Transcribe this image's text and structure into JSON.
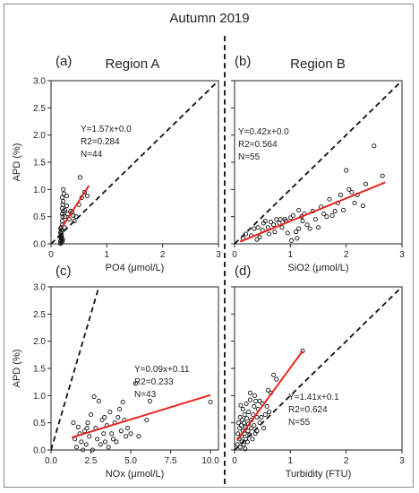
{
  "figure": {
    "title": "Autumn 2019"
  },
  "chart_data": [
    {
      "id": "a",
      "type": "scatter",
      "panel_label": "(a)",
      "region_label": "Region A",
      "xlabel": "PO4 (μmol/L)",
      "ylabel": "APD (%)",
      "xlim": [
        0,
        3
      ],
      "ylim": [
        0,
        3
      ],
      "xticks": [
        0,
        1,
        2,
        3
      ],
      "xtick_labels": [
        "0",
        "1",
        "2",
        "3"
      ],
      "yticks": [
        0,
        0.5,
        1,
        1.5,
        2,
        2.5,
        3
      ],
      "ytick_labels": [
        "0.0",
        "0.5",
        "1.0",
        "1.5",
        "2.0",
        "2.5",
        "3.0"
      ],
      "one_to_one": {
        "x": [
          0,
          3
        ],
        "y": [
          0,
          3
        ]
      },
      "fit": {
        "x": [
          0.2,
          0.68
        ],
        "y": [
          0.31,
          1.07
        ]
      },
      "annotation": {
        "eq": "Y=1.57x+0.0",
        "r2": "R2=0.284",
        "n": "N=44"
      },
      "points": [
        [
          0.17,
          0.0
        ],
        [
          0.18,
          0.02
        ],
        [
          0.17,
          0.05
        ],
        [
          0.19,
          0.07
        ],
        [
          0.18,
          0.1
        ],
        [
          0.17,
          0.13
        ],
        [
          0.18,
          0.15
        ],
        [
          0.19,
          0.18
        ],
        [
          0.17,
          0.2
        ],
        [
          0.18,
          0.22
        ],
        [
          0.19,
          0.25
        ],
        [
          0.17,
          0.28
        ],
        [
          0.18,
          0.3
        ],
        [
          0.19,
          0.12
        ],
        [
          0.2,
          0.04
        ],
        [
          0.21,
          0.08
        ],
        [
          0.2,
          0.35
        ],
        [
          0.2,
          0.42
        ],
        [
          0.21,
          0.5
        ],
        [
          0.2,
          0.55
        ],
        [
          0.22,
          0.6
        ],
        [
          0.2,
          0.65
        ],
        [
          0.21,
          0.72
        ],
        [
          0.22,
          0.78
        ],
        [
          0.2,
          0.85
        ],
        [
          0.23,
          0.92
        ],
        [
          0.22,
          1.0
        ],
        [
          0.25,
          0.5
        ],
        [
          0.25,
          0.62
        ],
        [
          0.28,
          0.7
        ],
        [
          0.28,
          0.88
        ],
        [
          0.3,
          0.55
        ],
        [
          0.33,
          0.45
        ],
        [
          0.35,
          0.6
        ],
        [
          0.38,
          0.58
        ],
        [
          0.4,
          0.52
        ],
        [
          0.42,
          0.42
        ],
        [
          0.45,
          0.5
        ],
        [
          0.5,
          0.72
        ],
        [
          0.52,
          1.22
        ],
        [
          0.55,
          0.85
        ],
        [
          0.6,
          0.95
        ],
        [
          0.65,
          0.88
        ],
        [
          0.24,
          0.3
        ]
      ]
    },
    {
      "id": "b",
      "type": "scatter",
      "panel_label": "(b)",
      "region_label": "Region B",
      "xlabel": "SiO2 (μmol/L)",
      "ylabel": "",
      "xlim": [
        0,
        3
      ],
      "ylim": [
        0,
        3
      ],
      "xticks": [
        0,
        1,
        2,
        3
      ],
      "xtick_labels": [
        "0",
        "1",
        "2",
        "3"
      ],
      "yticks": [
        0,
        0.5,
        1,
        1.5,
        2,
        2.5,
        3
      ],
      "ytick_labels": [
        "",
        "",
        "",
        "",
        "",
        "",
        ""
      ],
      "one_to_one": {
        "x": [
          0,
          3
        ],
        "y": [
          0,
          3
        ]
      },
      "fit": {
        "x": [
          0.1,
          2.7
        ],
        "y": [
          0.04,
          1.13
        ]
      },
      "annotation": {
        "eq": "Y=0.42x+0.0",
        "r2": "R2=0.564",
        "n": "N=55"
      },
      "points": [
        [
          0.15,
          0.1
        ],
        [
          0.2,
          0.18
        ],
        [
          0.3,
          0.15
        ],
        [
          0.35,
          0.28
        ],
        [
          0.4,
          0.08
        ],
        [
          0.42,
          0.3
        ],
        [
          0.45,
          0.12
        ],
        [
          0.5,
          0.25
        ],
        [
          0.52,
          0.38
        ],
        [
          0.55,
          0.42
        ],
        [
          0.6,
          0.3
        ],
        [
          0.62,
          0.18
        ],
        [
          0.65,
          0.4
        ],
        [
          0.7,
          0.35
        ],
        [
          0.72,
          0.22
        ],
        [
          0.75,
          0.45
        ],
        [
          0.8,
          0.38
        ],
        [
          0.82,
          0.45
        ],
        [
          0.85,
          0.3
        ],
        [
          0.9,
          0.45
        ],
        [
          0.92,
          0.42
        ],
        [
          0.95,
          0.2
        ],
        [
          1.0,
          0.48
        ],
        [
          1.02,
          0.06
        ],
        [
          1.05,
          0.52
        ],
        [
          1.1,
          0.22
        ],
        [
          1.12,
          0.1
        ],
        [
          1.15,
          0.28
        ],
        [
          1.2,
          0.5
        ],
        [
          1.22,
          0.42
        ],
        [
          1.25,
          0.55
        ],
        [
          1.3,
          0.35
        ],
        [
          1.35,
          0.28
        ],
        [
          1.4,
          0.6
        ],
        [
          1.45,
          0.45
        ],
        [
          1.5,
          0.3
        ],
        [
          1.55,
          0.68
        ],
        [
          1.6,
          0.55
        ],
        [
          1.65,
          0.5
        ],
        [
          1.7,
          0.82
        ],
        [
          1.75,
          0.52
        ],
        [
          1.8,
          0.6
        ],
        [
          1.85,
          0.75
        ],
        [
          1.9,
          0.9
        ],
        [
          1.95,
          0.62
        ],
        [
          2.0,
          1.35
        ],
        [
          2.05,
          1.0
        ],
        [
          2.1,
          0.95
        ],
        [
          2.15,
          0.75
        ],
        [
          2.2,
          0.9
        ],
        [
          2.3,
          0.7
        ],
        [
          2.35,
          1.1
        ],
        [
          2.5,
          1.8
        ],
        [
          2.65,
          1.25
        ],
        [
          1.15,
          0.62
        ]
      ]
    },
    {
      "id": "c",
      "type": "scatter",
      "panel_label": "(c)",
      "region_label": "",
      "xlabel": "NOx (μmol/L)",
      "ylabel": "APD (%)",
      "xlim": [
        0,
        10.5
      ],
      "ylim": [
        0,
        3
      ],
      "xticks": [
        0,
        2.5,
        5,
        7.5,
        10
      ],
      "xtick_labels": [
        "0.0",
        "2.5",
        "5.0",
        "7.5",
        "10.0"
      ],
      "yticks": [
        0,
        0.5,
        1,
        1.5,
        2,
        2.5,
        3
      ],
      "ytick_labels": [
        "0.0",
        "0.5",
        "1.0",
        "1.5",
        "2.0",
        "2.5",
        "3.0"
      ],
      "one_to_one": {
        "x": [
          0,
          3
        ],
        "y": [
          0,
          3
        ]
      },
      "fit": {
        "x": [
          1.3,
          10.0
        ],
        "y": [
          0.23,
          1.01
        ]
      },
      "annotation": {
        "eq": "Y=0.09x+0.11",
        "r2": "R2=0.233",
        "n": "N=43"
      },
      "points": [
        [
          1.4,
          0.5
        ],
        [
          1.5,
          0.2
        ],
        [
          1.6,
          0.05
        ],
        [
          1.8,
          0.3
        ],
        [
          1.9,
          0.15
        ],
        [
          2.0,
          0.0
        ],
        [
          2.1,
          0.35
        ],
        [
          2.2,
          0.1
        ],
        [
          2.3,
          0.5
        ],
        [
          2.4,
          0.25
        ],
        [
          2.5,
          0.65
        ],
        [
          2.6,
          0.0
        ],
        [
          2.7,
          0.98
        ],
        [
          2.8,
          0.4
        ],
        [
          2.9,
          0.2
        ],
        [
          3.0,
          0.9
        ],
        [
          3.1,
          0.1
        ],
        [
          3.2,
          0.55
        ],
        [
          3.3,
          0.3
        ],
        [
          3.4,
          0.15
        ],
        [
          3.5,
          0.45
        ],
        [
          3.6,
          0.05
        ],
        [
          3.7,
          0.7
        ],
        [
          3.8,
          0.3
        ],
        [
          3.9,
          0.2
        ],
        [
          4.0,
          0.5
        ],
        [
          4.1,
          0.15
        ],
        [
          4.2,
          0.6
        ],
        [
          4.3,
          0.75
        ],
        [
          4.4,
          0.35
        ],
        [
          4.5,
          0.88
        ],
        [
          4.6,
          0.55
        ],
        [
          4.7,
          0.25
        ],
        [
          4.8,
          0.4
        ],
        [
          5.0,
          0.3
        ],
        [
          5.3,
          1.22
        ],
        [
          5.5,
          0.25
        ],
        [
          6.0,
          0.55
        ],
        [
          6.2,
          0.9
        ],
        [
          2.25,
          0.4
        ],
        [
          3.35,
          0.6
        ],
        [
          1.7,
          0.42
        ],
        [
          10.0,
          0.88
        ]
      ]
    },
    {
      "id": "d",
      "type": "scatter",
      "panel_label": "(d)",
      "region_label": "",
      "xlabel": "Turbidity (FTU)",
      "ylabel": "",
      "xlim": [
        0,
        3
      ],
      "ylim": [
        0,
        3
      ],
      "xticks": [
        0,
        1,
        2,
        3
      ],
      "xtick_labels": [
        "0",
        "1",
        "2",
        "3"
      ],
      "yticks": [
        0,
        0.5,
        1,
        1.5,
        2,
        2.5,
        3
      ],
      "ytick_labels": [
        "",
        "",
        "",
        "",
        "",
        "",
        ""
      ],
      "one_to_one": {
        "x": [
          0,
          3
        ],
        "y": [
          0,
          3
        ]
      },
      "fit": {
        "x": [
          0.05,
          1.22
        ],
        "y": [
          0.18,
          1.82
        ]
      },
      "annotation": {
        "eq": "Y=1.41x+0.1",
        "r2": "R2=0.624",
        "n": "N=55"
      },
      "points": [
        [
          0.05,
          0.1
        ],
        [
          0.06,
          0.3
        ],
        [
          0.07,
          0.5
        ],
        [
          0.08,
          0.2
        ],
        [
          0.09,
          0.4
        ],
        [
          0.1,
          0.05
        ],
        [
          0.1,
          0.6
        ],
        [
          0.12,
          0.25
        ],
        [
          0.12,
          0.45
        ],
        [
          0.13,
          0.15
        ],
        [
          0.14,
          0.55
        ],
        [
          0.15,
          0.35
        ],
        [
          0.15,
          0.75
        ],
        [
          0.16,
          0.1
        ],
        [
          0.17,
          0.5
        ],
        [
          0.18,
          0.3
        ],
        [
          0.18,
          0.65
        ],
        [
          0.2,
          0.2
        ],
        [
          0.2,
          0.42
        ],
        [
          0.21,
          0.85
        ],
        [
          0.22,
          0.58
        ],
        [
          0.23,
          0.15
        ],
        [
          0.24,
          0.35
        ],
        [
          0.25,
          0.7
        ],
        [
          0.25,
          0.48
        ],
        [
          0.27,
          0.28
        ],
        [
          0.28,
          0.92
        ],
        [
          0.3,
          0.55
        ],
        [
          0.3,
          0.4
        ],
        [
          0.32,
          0.2
        ],
        [
          0.33,
          0.65
        ],
        [
          0.35,
          0.8
        ],
        [
          0.35,
          0.45
        ],
        [
          0.37,
          0.3
        ],
        [
          0.38,
          0.9
        ],
        [
          0.4,
          0.6
        ],
        [
          0.4,
          0.35
        ],
        [
          0.42,
          0.75
        ],
        [
          0.45,
          0.5
        ],
        [
          0.45,
          0.9
        ],
        [
          0.48,
          0.6
        ],
        [
          0.5,
          0.85
        ],
        [
          0.52,
          0.4
        ],
        [
          0.55,
          0.65
        ],
        [
          0.58,
          0.8
        ],
        [
          0.6,
          1.1
        ],
        [
          0.62,
          0.7
        ],
        [
          0.65,
          1.05
        ],
        [
          0.7,
          1.38
        ],
        [
          0.75,
          1.3
        ],
        [
          0.28,
          1.05
        ],
        [
          0.11,
          0.82
        ],
        [
          0.19,
          0.02
        ],
        [
          0.36,
          1.0
        ],
        [
          1.22,
          1.82
        ]
      ]
    }
  ]
}
